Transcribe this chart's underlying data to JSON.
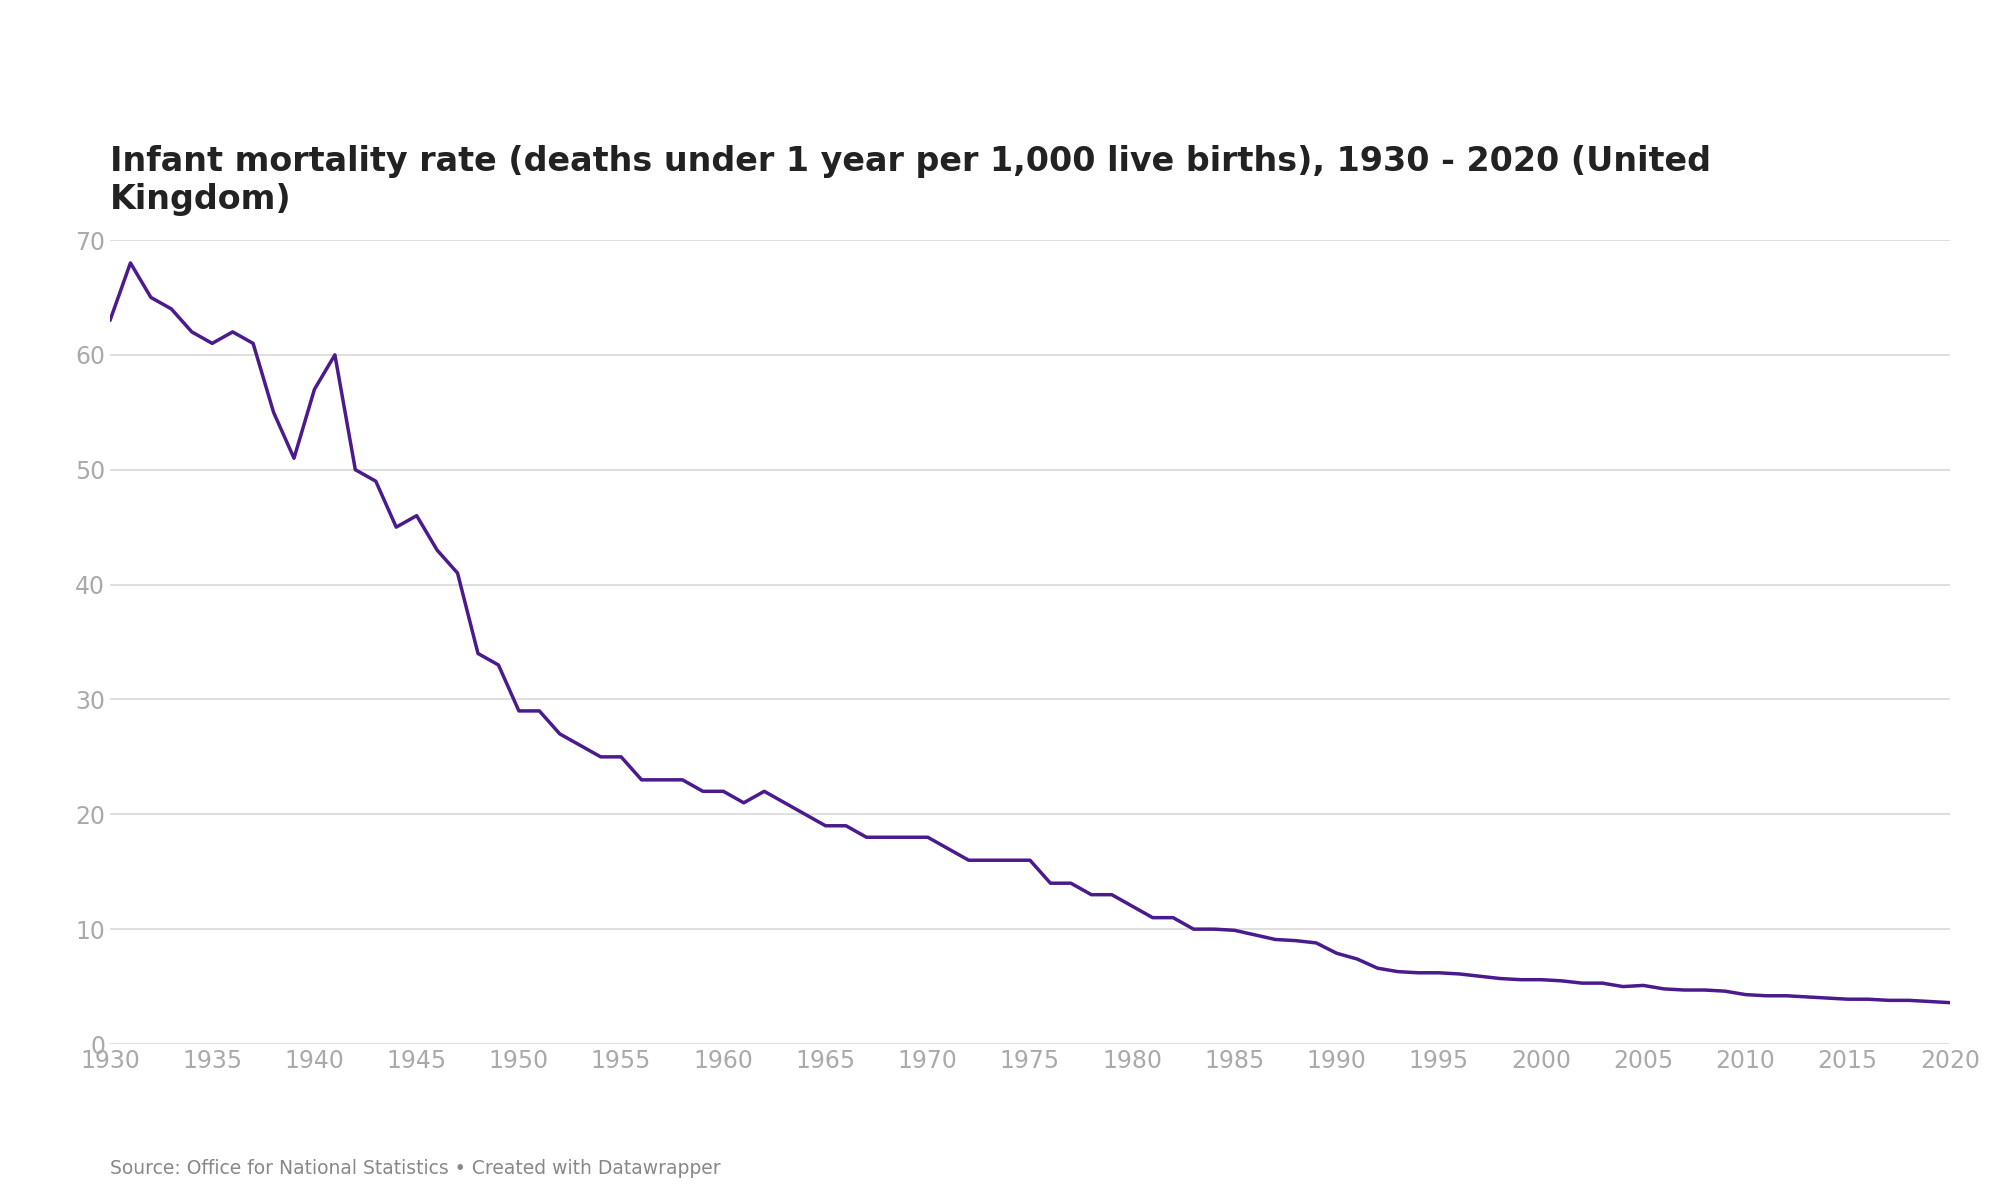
{
  "title": "Infant mortality rate (deaths under 1 year per 1,000 live births), 1930 - 2020 (United\nKingdom)",
  "source_text": "Source: Office for National Statistics • Created with Datawrapper",
  "line_color": "#4b1a8c",
  "background_color": "#ffffff",
  "grid_color": "#d9d9d9",
  "tick_label_color": "#aaaaaa",
  "title_color": "#222222",
  "xlim": [
    1930,
    2020
  ],
  "ylim": [
    0,
    70
  ],
  "yticks": [
    0,
    10,
    20,
    30,
    40,
    50,
    60,
    70
  ],
  "xticks": [
    1930,
    1935,
    1940,
    1945,
    1950,
    1955,
    1960,
    1965,
    1970,
    1975,
    1980,
    1985,
    1990,
    1995,
    2000,
    2005,
    2010,
    2015,
    2020
  ],
  "data": {
    "years": [
      1930,
      1931,
      1932,
      1933,
      1934,
      1935,
      1936,
      1937,
      1938,
      1939,
      1940,
      1941,
      1942,
      1943,
      1944,
      1945,
      1946,
      1947,
      1948,
      1949,
      1950,
      1951,
      1952,
      1953,
      1954,
      1955,
      1956,
      1957,
      1958,
      1959,
      1960,
      1961,
      1962,
      1963,
      1964,
      1965,
      1966,
      1967,
      1968,
      1969,
      1970,
      1971,
      1972,
      1973,
      1974,
      1975,
      1976,
      1977,
      1978,
      1979,
      1980,
      1981,
      1982,
      1983,
      1984,
      1985,
      1986,
      1987,
      1988,
      1989,
      1990,
      1991,
      1992,
      1993,
      1994,
      1995,
      1996,
      1997,
      1998,
      1999,
      2000,
      2001,
      2002,
      2003,
      2004,
      2005,
      2006,
      2007,
      2008,
      2009,
      2010,
      2011,
      2012,
      2013,
      2014,
      2015,
      2016,
      2017,
      2018,
      2019,
      2020
    ],
    "values": [
      63,
      68,
      65,
      64,
      62,
      61,
      62,
      61,
      55,
      51,
      57,
      60,
      50,
      49,
      45,
      46,
      43,
      41,
      34,
      33,
      29,
      29,
      27,
      26,
      25,
      25,
      23,
      23,
      23,
      22,
      22,
      21,
      22,
      21,
      20,
      19,
      19,
      18,
      18,
      18,
      18,
      17,
      16,
      16,
      16,
      16,
      14,
      14,
      13,
      13,
      12,
      11,
      11,
      10,
      10,
      9.9,
      9.5,
      9.1,
      9.0,
      8.8,
      7.9,
      7.4,
      6.6,
      6.3,
      6.2,
      6.2,
      6.1,
      5.9,
      5.7,
      5.6,
      5.6,
      5.5,
      5.3,
      5.3,
      5.0,
      5.1,
      4.8,
      4.7,
      4.7,
      4.6,
      4.3,
      4.2,
      4.2,
      4.1,
      4.0,
      3.9,
      3.9,
      3.8,
      3.8,
      3.7,
      3.6
    ]
  }
}
